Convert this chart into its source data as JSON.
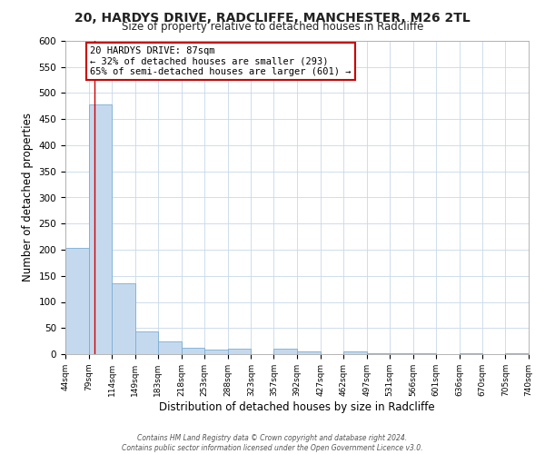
{
  "title_line1": "20, HARDYS DRIVE, RADCLIFFE, MANCHESTER, M26 2TL",
  "title_line2": "Size of property relative to detached houses in Radcliffe",
  "xlabel": "Distribution of detached houses by size in Radcliffe",
  "ylabel": "Number of detached properties",
  "bin_edges": [
    44,
    79,
    114,
    149,
    183,
    218,
    253,
    288,
    323,
    357,
    392,
    427,
    462,
    497,
    531,
    566,
    601,
    636,
    670,
    705,
    740
  ],
  "bin_labels": [
    "44sqm",
    "79sqm",
    "114sqm",
    "149sqm",
    "183sqm",
    "218sqm",
    "253sqm",
    "288sqm",
    "323sqm",
    "357sqm",
    "392sqm",
    "427sqm",
    "462sqm",
    "497sqm",
    "531sqm",
    "566sqm",
    "601sqm",
    "636sqm",
    "670sqm",
    "705sqm",
    "740sqm"
  ],
  "counts": [
    203,
    478,
    135,
    43,
    24,
    13,
    9,
    10,
    0,
    10,
    5,
    0,
    5,
    2,
    2,
    2,
    0,
    2,
    0,
    2
  ],
  "bar_color": "#c5d9ee",
  "bar_edge_color": "#7aadd4",
  "property_line_x": 87,
  "property_line_color": "#cc0000",
  "annotation_title": "20 HARDYS DRIVE: 87sqm",
  "annotation_line1": "← 32% of detached houses are smaller (293)",
  "annotation_line2": "65% of semi-detached houses are larger (601) →",
  "annotation_box_color": "#cc0000",
  "ylim": [
    0,
    600
  ],
  "yticks": [
    0,
    50,
    100,
    150,
    200,
    250,
    300,
    350,
    400,
    450,
    500,
    550,
    600
  ],
  "footer_line1": "Contains HM Land Registry data © Crown copyright and database right 2024.",
  "footer_line2": "Contains public sector information licensed under the Open Government Licence v3.0.",
  "bg_color": "#ffffff",
  "grid_color": "#c8d8ea"
}
